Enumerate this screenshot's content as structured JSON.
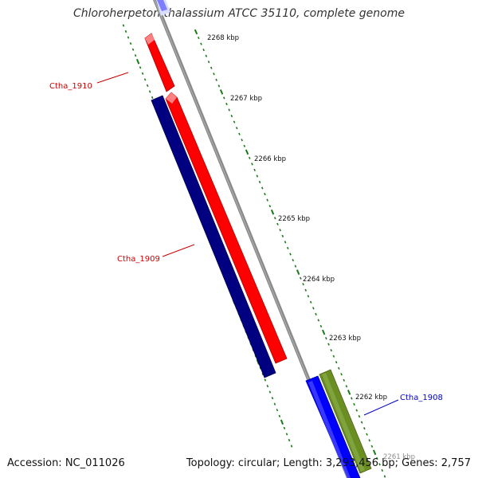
{
  "title": "Chloroherpeton thalassium ATCC 35110, complete genome",
  "footer": {
    "accession": "Accession: NC_011026",
    "summary": "Topology: circular; Length: 3,293,456 bp; Genes: 2,757"
  },
  "ruler": {
    "labels": [
      "2268 kbp",
      "2267 kbp",
      "2266 kbp",
      "2265 kbp",
      "2264 kbp",
      "2263 kbp",
      "2262 kbp",
      "2261 kbp"
    ],
    "tick_color": "#1a7a1a"
  },
  "genes": [
    {
      "label": "Ctha_1910",
      "color": "#ff0000",
      "label_color": "#cc0000",
      "strand": "reverse"
    },
    {
      "label": "Ctha_1909",
      "color": "#ff0000",
      "label_color": "#cc0000",
      "strand": "reverse"
    },
    {
      "label": "Ctha_1908",
      "color": "#0000ff",
      "label_color": "#0000cc",
      "strand": "forward"
    }
  ],
  "other_features": [
    {
      "color": "#000080"
    },
    {
      "color": "#6b8e23"
    }
  ],
  "backbone_color": "#888888"
}
